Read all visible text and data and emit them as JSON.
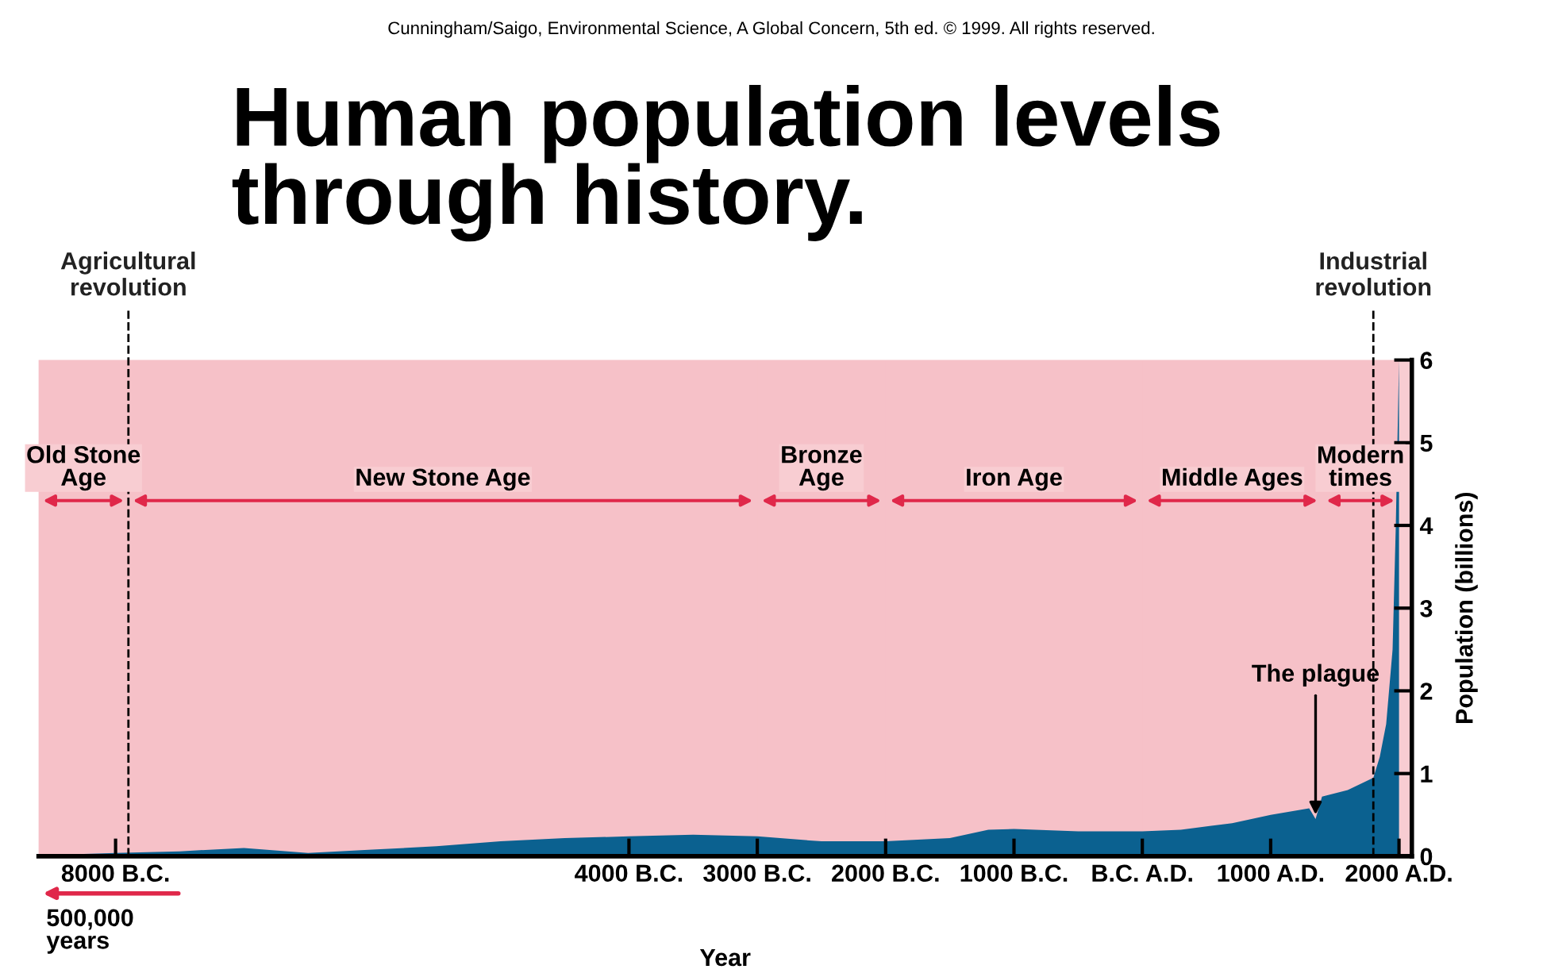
{
  "chart_data": {
    "type": "area",
    "title": "Human population levels\nthrough history.",
    "xlabel": "Year",
    "ylabel": "Population (billions)",
    "annotations": [
      "Cunningham/Saigo, Environmental Science, A Global Concern, 5th ed. © 1999. All rights reserved.",
      {
        "text": "The plague",
        "x": 1350,
        "y": 0.45
      },
      "500,000 years"
    ],
    "x": [
      -8600,
      -8000,
      -7500,
      -7000,
      -6500,
      -6000,
      -5500,
      -5000,
      -4500,
      -4000,
      -3500,
      -3000,
      -2500,
      -2000,
      -1500,
      -1200,
      -1000,
      -500,
      0,
      300,
      700,
      1000,
      1300,
      1350,
      1400,
      1600,
      1800,
      1850,
      1900,
      1950,
      1975,
      2000
    ],
    "series": [
      {
        "color": "#0b6190",
        "values": [
          0.01,
          0.04,
          0.06,
          0.1,
          0.04,
          0.08,
          0.12,
          0.18,
          0.22,
          0.24,
          0.26,
          0.24,
          0.18,
          0.18,
          0.22,
          0.32,
          0.33,
          0.3,
          0.3,
          0.32,
          0.4,
          0.5,
          0.58,
          0.45,
          0.72,
          0.8,
          0.95,
          1.2,
          1.6,
          2.5,
          4,
          6
        ]
      }
    ],
    "xlim": [
      -8600,
      2100
    ],
    "ylim": [
      0,
      6
    ],
    "xticks": [
      {
        "value": -8000,
        "label": "8000 B.C."
      },
      {
        "value": -4000,
        "label": "4000 B.C."
      },
      {
        "value": -3000,
        "label": "3000 B.C."
      },
      {
        "value": -2000,
        "label": "2000 B.C."
      },
      {
        "value": -1000,
        "label": "1000 B.C."
      },
      {
        "value": 0,
        "label": "B.C. A.D."
      },
      {
        "value": 1000,
        "label": "1000 A.D."
      },
      {
        "value": 2000,
        "label": "2000 A.D."
      }
    ],
    "yticks": [
      0,
      1,
      2,
      3,
      4,
      5,
      6
    ],
    "ref_lines": [
      {
        "axis": "x",
        "value": -7900,
        "label": "Agricultural\nrevolution",
        "line_style": "dashed",
        "color": "#000000"
      },
      {
        "axis": "x",
        "value": 1800,
        "label": "Industrial\nrevolution",
        "line_style": "dashed",
        "color": "#000000"
      }
    ],
    "bands": [
      {
        "axis": "x",
        "from": -8600,
        "to": -7900,
        "label": "Old Stone\nAge",
        "color": "#e0284a"
      },
      {
        "axis": "x",
        "from": -7900,
        "to": -3000,
        "label": "New Stone Age",
        "color": "#e0284a"
      },
      {
        "axis": "x",
        "from": -3000,
        "to": -2000,
        "label": "Bronze\nAge",
        "color": "#e0284a"
      },
      {
        "axis": "x",
        "from": -2000,
        "to": 0,
        "label": "Iron Age",
        "color": "#e0284a"
      },
      {
        "axis": "x",
        "from": 0,
        "to": 1400,
        "label": "Middle Ages",
        "color": "#e0284a"
      },
      {
        "axis": "x",
        "from": 1400,
        "to": 2000,
        "label": "Modern\ntimes",
        "color": "#e0284a"
      }
    ],
    "grid": false,
    "legend": false,
    "marker": "none"
  }
}
